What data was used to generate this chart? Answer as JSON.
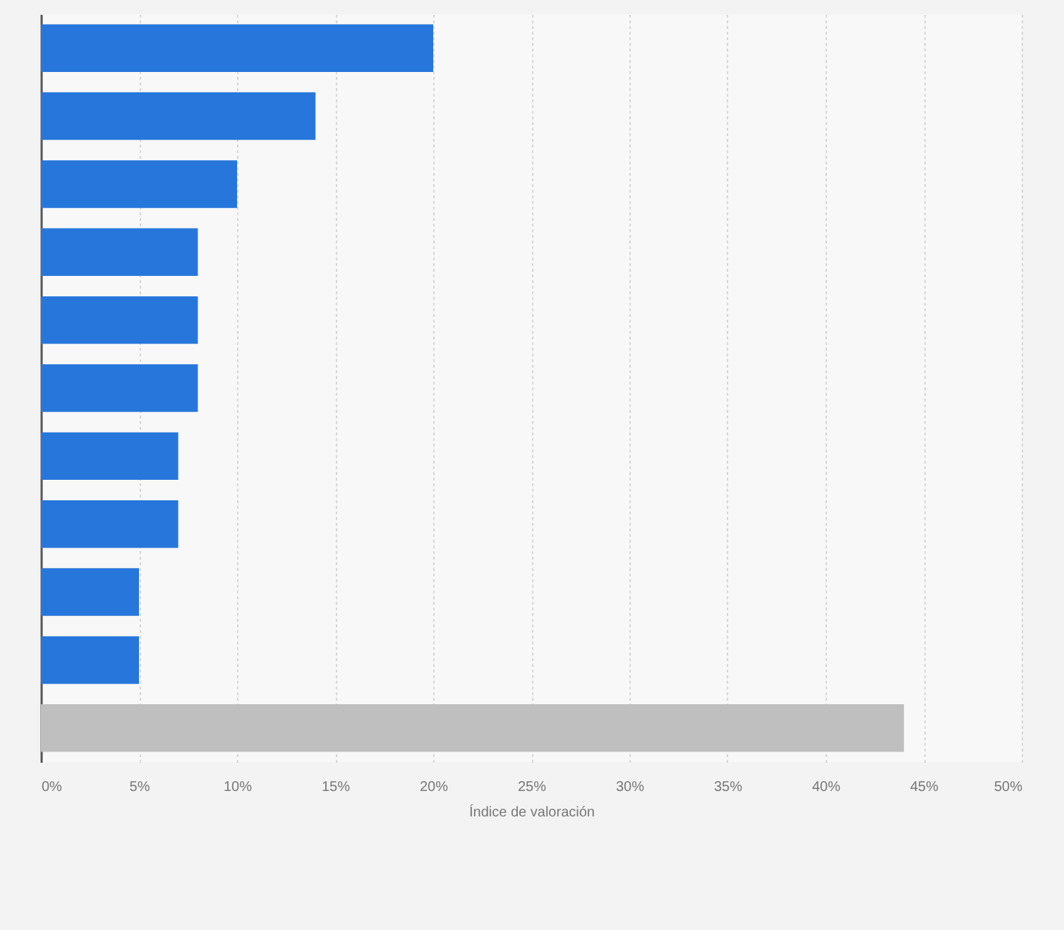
{
  "chart_data": {
    "type": "bar",
    "orientation": "horizontal",
    "xlabel": "Índice de valoración",
    "categories": [
      null,
      null,
      null,
      null,
      null,
      null,
      null,
      null,
      null,
      null,
      null
    ],
    "values": [
      20,
      14,
      10,
      8,
      8,
      8,
      7,
      7,
      5,
      5,
      44
    ],
    "colors": [
      "#2776db",
      "#2776db",
      "#2776db",
      "#2776db",
      "#2776db",
      "#2776db",
      "#2776db",
      "#2776db",
      "#2776db",
      "#2776db",
      "#bfbfbf"
    ],
    "xlim": [
      0,
      50
    ],
    "xticks": [
      {
        "value": 0,
        "label": "0%"
      },
      {
        "value": 5,
        "label": "5%"
      },
      {
        "value": 10,
        "label": "10%"
      },
      {
        "value": 15,
        "label": "15%"
      },
      {
        "value": 20,
        "label": "20%"
      },
      {
        "value": 25,
        "label": "25%"
      },
      {
        "value": 30,
        "label": "30%"
      },
      {
        "value": 35,
        "label": "35%"
      },
      {
        "value": 40,
        "label": "40%"
      },
      {
        "value": 45,
        "label": "45%"
      },
      {
        "value": 50,
        "label": "50%"
      }
    ],
    "grid": "x",
    "tick_labels": "x"
  }
}
